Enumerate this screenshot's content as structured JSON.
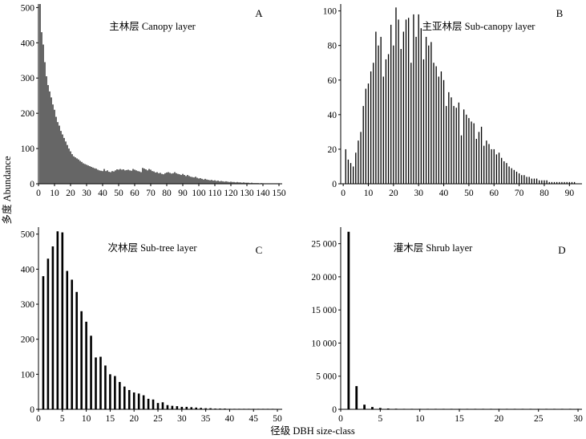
{
  "figure": {
    "ylabel": "多度 Abundance",
    "xlabel": "径级  DBH size-class"
  },
  "chart_data": [
    {
      "type": "bar",
      "panel": "A",
      "title": "主林层 Canopy layer",
      "xlim": [
        0,
        152
      ],
      "ylim": [
        0,
        510
      ],
      "xticks": [
        0,
        10,
        20,
        30,
        40,
        50,
        60,
        70,
        80,
        90,
        100,
        110,
        120,
        130,
        140,
        150
      ],
      "yticks": [
        0,
        100,
        200,
        300,
        400,
        500
      ],
      "x_start": 1,
      "values": [
        510,
        430,
        395,
        345,
        305,
        280,
        262,
        245,
        225,
        210,
        190,
        175,
        165,
        150,
        140,
        130,
        120,
        110,
        100,
        92,
        84,
        78,
        75,
        72,
        69,
        65,
        62,
        58,
        56,
        54,
        52,
        50,
        48,
        46,
        44,
        43,
        40,
        38,
        37,
        36,
        42,
        36,
        38,
        34,
        33,
        36,
        35,
        38,
        41,
        40,
        42,
        40,
        41,
        38,
        39,
        40,
        38,
        37,
        42,
        40,
        38,
        36,
        35,
        33,
        45,
        43,
        41,
        38,
        42,
        40,
        36,
        35,
        32,
        33,
        30,
        31,
        28,
        27,
        30,
        32,
        33,
        31,
        29,
        30,
        33,
        30,
        28,
        27,
        25,
        28,
        25,
        22,
        25,
        22,
        20,
        19,
        18,
        20,
        17,
        15,
        16,
        14,
        12,
        14,
        12,
        11,
        10,
        11,
        9,
        10,
        8,
        9,
        7,
        8,
        7,
        6,
        7,
        6,
        5,
        6,
        5,
        5,
        4,
        5,
        4,
        4,
        3,
        4,
        3,
        3,
        3,
        2,
        3,
        2,
        2,
        2,
        2,
        1,
        2,
        1,
        1,
        1,
        1,
        1,
        1,
        1,
        1,
        1,
        1,
        1
      ]
    },
    {
      "type": "bar",
      "panel": "B",
      "title": "主亚林层 Sub-canopy layer",
      "xlim": [
        -1,
        95
      ],
      "ylim": [
        0,
        104
      ],
      "xticks": [
        0,
        10,
        20,
        30,
        40,
        50,
        60,
        70,
        80,
        90
      ],
      "yticks": [
        0,
        20,
        40,
        60,
        80,
        100
      ],
      "x_start": 1,
      "values": [
        20,
        14,
        12,
        10,
        18,
        25,
        30,
        45,
        55,
        58,
        65,
        70,
        88,
        80,
        85,
        62,
        72,
        75,
        92,
        80,
        102,
        95,
        78,
        88,
        95,
        96,
        70,
        98,
        85,
        98,
        90,
        72,
        85,
        80,
        82,
        70,
        68,
        62,
        65,
        60,
        45,
        53,
        50,
        45,
        44,
        47,
        28,
        43,
        40,
        38,
        36,
        35,
        26,
        30,
        33,
        22,
        25,
        23,
        20,
        20,
        17,
        18,
        15,
        13,
        12,
        10,
        9,
        8,
        7,
        6,
        5,
        5,
        4,
        4,
        3,
        3,
        3,
        2,
        2,
        2,
        2,
        1,
        1,
        1,
        1,
        1,
        1,
        1,
        1,
        1,
        1,
        1
      ]
    },
    {
      "type": "bar",
      "panel": "C",
      "title": "次林层 Sub-tree layer",
      "xlim": [
        0,
        51
      ],
      "ylim": [
        0,
        520
      ],
      "xticks": [
        0,
        5,
        10,
        15,
        20,
        25,
        30,
        35,
        40,
        45,
        50
      ],
      "yticks": [
        0,
        100,
        200,
        300,
        400,
        500
      ],
      "x_start": 1,
      "values": [
        380,
        430,
        465,
        508,
        505,
        395,
        370,
        335,
        280,
        250,
        210,
        148,
        150,
        125,
        100,
        95,
        78,
        65,
        55,
        48,
        45,
        40,
        30,
        28,
        18,
        20,
        12,
        10,
        9,
        7,
        7,
        6,
        5,
        4,
        3,
        3,
        2,
        2,
        2,
        1,
        1,
        1,
        1,
        1,
        1,
        1,
        1,
        1,
        1
      ]
    },
    {
      "type": "bar",
      "panel": "D",
      "title": "灌木层 Shrub layer",
      "xlim": [
        0,
        30.5
      ],
      "ylim": [
        0,
        27500
      ],
      "xticks": [
        0,
        5,
        10,
        15,
        20,
        25,
        30
      ],
      "yticks": [
        0,
        5000,
        10000,
        15000,
        20000,
        25000
      ],
      "ytick_labels": [
        "0",
        "5 000",
        "10 000",
        "15 000",
        "20 000",
        "25 000"
      ],
      "x_start": 1,
      "values": [
        26800,
        3500,
        700,
        350,
        200,
        120,
        90,
        70,
        55,
        45,
        35,
        30,
        25,
        22,
        20,
        18,
        15,
        12,
        10,
        9,
        8,
        7,
        6,
        5,
        5,
        4,
        3,
        3,
        2,
        2
      ]
    }
  ]
}
